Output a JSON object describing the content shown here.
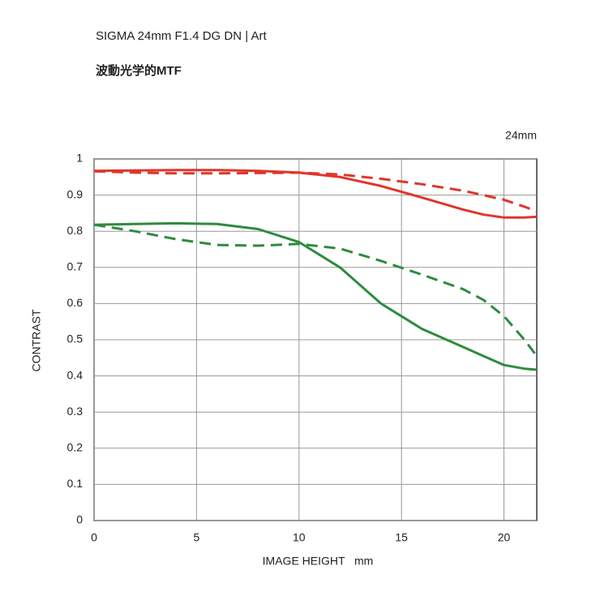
{
  "chart_data": {
    "type": "line",
    "title": "SIGMA 24mm F1.4 DG DN | Art",
    "subtitle": "波動光学的MTF",
    "annotation": "24mm",
    "y_label": "CONTRAST",
    "x_label": "IMAGE HEIGHT   mm",
    "x": [
      0,
      2,
      4,
      6,
      8,
      10,
      12,
      14,
      16,
      18,
      19,
      20,
      21,
      21.6
    ],
    "series": [
      {
        "color": "#e0352b",
        "dash": "solid",
        "values": [
          0.967,
          0.968,
          0.969,
          0.969,
          0.967,
          0.962,
          0.95,
          0.925,
          0.893,
          0.86,
          0.846,
          0.838,
          0.838,
          0.84
        ]
      },
      {
        "color": "#e0352b",
        "dash": "dashed",
        "values": [
          0.966,
          0.962,
          0.96,
          0.96,
          0.961,
          0.962,
          0.957,
          0.945,
          0.93,
          0.912,
          0.9,
          0.887,
          0.868,
          0.855
        ]
      },
      {
        "color": "#2e8b3e",
        "dash": "solid",
        "values": [
          0.818,
          0.82,
          0.822,
          0.82,
          0.806,
          0.77,
          0.7,
          0.6,
          0.53,
          0.48,
          0.455,
          0.43,
          0.42,
          0.417
        ]
      },
      {
        "color": "#2e8b3e",
        "dash": "dashed",
        "values": [
          0.818,
          0.8,
          0.778,
          0.762,
          0.76,
          0.765,
          0.752,
          0.718,
          0.68,
          0.64,
          0.61,
          0.565,
          0.5,
          0.455
        ]
      }
    ],
    "xlim": [
      0,
      21.6
    ],
    "xticks": [
      0,
      5,
      10,
      15,
      20
    ],
    "ylim": [
      0,
      1
    ],
    "yticks": [
      0,
      0.1,
      0.2,
      0.3,
      0.4,
      0.5,
      0.6,
      0.7,
      0.8,
      0.9,
      1
    ],
    "grid": true
  }
}
